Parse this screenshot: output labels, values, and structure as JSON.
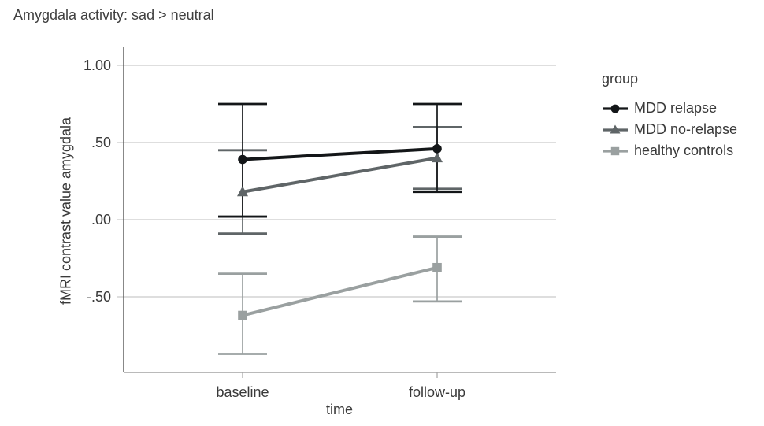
{
  "chart_data": {
    "type": "line",
    "title": "Amygdala activity: sad > neutral",
    "xlabel": "time",
    "ylabel": "fMRI contrast value amygdala",
    "categories": [
      "baseline",
      "follow-up"
    ],
    "y_tick_values": [
      1.0,
      0.5,
      0.0,
      -0.5
    ],
    "y_tick_labels": [
      "1.00",
      ".50",
      ".00",
      "-.50"
    ],
    "ylim": [
      -0.99,
      1.12
    ],
    "grid": true,
    "legend": {
      "title": "group",
      "position": "right"
    },
    "series": [
      {
        "name": "MDD relapse",
        "marker": "circle",
        "color": "#131618",
        "values": [
          0.39,
          0.46
        ],
        "err_low": [
          0.02,
          0.18
        ],
        "err_high": [
          0.75,
          0.75
        ]
      },
      {
        "name": "MDD no-relapse",
        "marker": "triangle",
        "color": "#5f6567",
        "values": [
          0.18,
          0.4
        ],
        "err_low": [
          -0.09,
          0.2
        ],
        "err_high": [
          0.45,
          0.6
        ]
      },
      {
        "name": "healthy controls",
        "marker": "square",
        "color": "#9aa0a0",
        "values": [
          -0.62,
          -0.31
        ],
        "err_low": [
          -0.87,
          -0.53
        ],
        "err_high": [
          -0.35,
          -0.11
        ]
      }
    ],
    "style": {
      "grid_color": "#c9c9c9",
      "y_axis_color": "#565656",
      "x_axis_color": "#a3a3a3",
      "text_color": "#3a3a3a"
    }
  }
}
